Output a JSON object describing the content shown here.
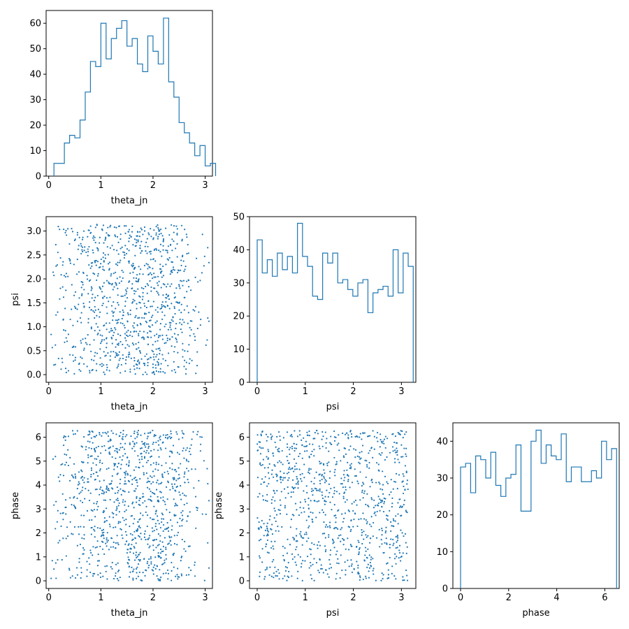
{
  "chart_data": [
    {
      "id": "theta_jn",
      "type": "histogram",
      "xlabel": "theta_jn",
      "ylabel": "",
      "xlim": [
        -0.05,
        3.14
      ],
      "ylim": [
        0,
        65
      ],
      "xticks": [
        0,
        1,
        2,
        3
      ],
      "yticks": [
        0,
        10,
        20,
        30,
        40,
        50,
        60
      ],
      "bin_start": 0.1,
      "bin_width": 0.1,
      "counts": [
        5,
        5,
        13,
        16,
        15,
        22,
        33,
        45,
        43,
        60,
        46,
        54,
        58,
        61,
        51,
        54,
        44,
        41,
        55,
        49,
        44,
        62,
        37,
        31,
        21,
        17,
        13,
        8,
        12,
        4,
        5
      ]
    },
    {
      "id": "psi",
      "type": "histogram",
      "xlabel": "psi",
      "ylabel": "",
      "xlim": [
        -0.16,
        3.3
      ],
      "ylim": [
        0,
        50
      ],
      "xticks": [
        0,
        1,
        2,
        3
      ],
      "yticks": [
        0,
        10,
        20,
        30,
        40,
        50
      ],
      "bin_start": 0,
      "bin_width": 0.1047,
      "counts": [
        43,
        33,
        37,
        32,
        39,
        34,
        38,
        33,
        48,
        38,
        35,
        26,
        25,
        39,
        36,
        39,
        30,
        31,
        28,
        26,
        30,
        31,
        21,
        27,
        28,
        29,
        26,
        40,
        27,
        39,
        35
      ]
    },
    {
      "id": "phase",
      "type": "histogram",
      "xlabel": "phase",
      "ylabel": "",
      "xlim": [
        -0.32,
        6.6
      ],
      "ylim": [
        0,
        45
      ],
      "xticks": [
        0,
        2,
        4,
        6
      ],
      "yticks": [
        0,
        10,
        20,
        30,
        40
      ],
      "bin_start": 0,
      "bin_width": 0.2094,
      "counts": [
        33,
        34,
        26,
        36,
        35,
        30,
        37,
        28,
        25,
        30,
        31,
        39,
        21,
        21,
        40,
        43,
        34,
        39,
        36,
        35,
        42,
        29,
        33,
        33,
        29,
        29,
        32,
        30,
        40,
        35,
        38
      ]
    },
    {
      "id": "theta_jn_vs_psi",
      "type": "scatter",
      "xlabel": "theta_jn",
      "ylabel": "psi",
      "xlim": [
        -0.05,
        3.14
      ],
      "ylim": [
        -0.16,
        3.3
      ],
      "xticks": [
        0,
        1,
        2,
        3
      ],
      "yticks": [
        0.0,
        0.5,
        1.0,
        1.5,
        2.0,
        2.5,
        3.0
      ],
      "ytick_labels": [
        "0.0",
        "0.5",
        "1.0",
        "1.5",
        "2.0",
        "2.5",
        "3.0"
      ],
      "n_points": 1000,
      "x_distribution": "sin-like on [0, pi]",
      "y_distribution": "uniform on [0, pi]"
    },
    {
      "id": "theta_jn_vs_phase",
      "type": "scatter",
      "xlabel": "theta_jn",
      "ylabel": "phase",
      "xlim": [
        -0.05,
        3.14
      ],
      "ylim": [
        -0.32,
        6.6
      ],
      "xticks": [
        0,
        1,
        2,
        3
      ],
      "yticks": [
        0,
        1,
        2,
        3,
        4,
        5,
        6
      ],
      "n_points": 1000,
      "x_distribution": "sin-like on [0, pi]",
      "y_distribution": "uniform on [0, 2pi]"
    },
    {
      "id": "psi_vs_phase",
      "type": "scatter",
      "xlabel": "psi",
      "ylabel": "phase",
      "xlim": [
        -0.16,
        3.3
      ],
      "ylim": [
        -0.32,
        6.6
      ],
      "xticks": [
        0,
        1,
        2,
        3
      ],
      "yticks": [
        0,
        1,
        2,
        3,
        4,
        5,
        6
      ],
      "n_points": 1000,
      "x_distribution": "uniform on [0, pi]",
      "y_distribution": "uniform on [0, 2pi]"
    }
  ],
  "colors": {
    "series": "#1f77b4",
    "axes": "#000000",
    "background": "#ffffff"
  }
}
